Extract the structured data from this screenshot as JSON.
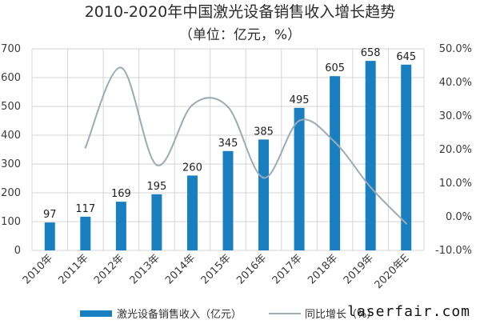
{
  "chart_data": {
    "type": "bar",
    "title": "2010-2020年中国激光设备销售收入增长趋势",
    "subtitle": "（单位：亿元，%）",
    "categories": [
      "2010年",
      "2011年",
      "2012年",
      "2013年",
      "2014年",
      "2015年",
      "2016年",
      "2017年",
      "2018年",
      "2019年",
      "2020年E"
    ],
    "series": [
      {
        "name": "激光设备销售收入（亿元）",
        "type": "bar",
        "axis": "left",
        "values": [
          97,
          117,
          169,
          195,
          260,
          345,
          385,
          495,
          605,
          658,
          645
        ],
        "labels": [
          "97",
          "117",
          "169",
          "195",
          "260",
          "345",
          "385",
          "495",
          "605",
          "658",
          "645"
        ]
      },
      {
        "name": "同比增长（%）",
        "type": "line",
        "axis": "right",
        "values": [
          null,
          20.6,
          44.4,
          15.4,
          33.3,
          32.7,
          11.6,
          28.6,
          22.2,
          8.8,
          -2.0
        ]
      }
    ],
    "left_axis": {
      "min": 0,
      "max": 700,
      "ticks": [
        "0",
        "100",
        "200",
        "300",
        "400",
        "500",
        "600",
        "700"
      ]
    },
    "right_axis": {
      "min": -10,
      "max": 50,
      "ticks": [
        "-10.0%",
        "0.0%",
        "10.0%",
        "20.0%",
        "30.0%",
        "40.0%",
        "50.0%"
      ]
    },
    "grid": true,
    "legend_position": "bottom",
    "colors": {
      "bar": "#1a7fc1",
      "line": "#9aabb5",
      "grid": "#d5d5d5"
    }
  },
  "watermark": "laserfair.com"
}
